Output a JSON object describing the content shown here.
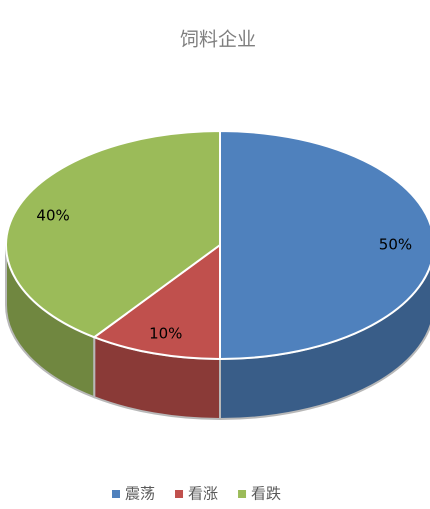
{
  "chart_data": {
    "type": "pie",
    "title": "饲料企业",
    "categories": [
      "震荡",
      "看涨",
      "看跌"
    ],
    "values": [
      50,
      10,
      40
    ],
    "value_labels": [
      "50%",
      "10%",
      "40%"
    ],
    "colors": [
      "#4f81bd",
      "#c0504d",
      "#9bbb59"
    ],
    "legend": "bottom"
  }
}
